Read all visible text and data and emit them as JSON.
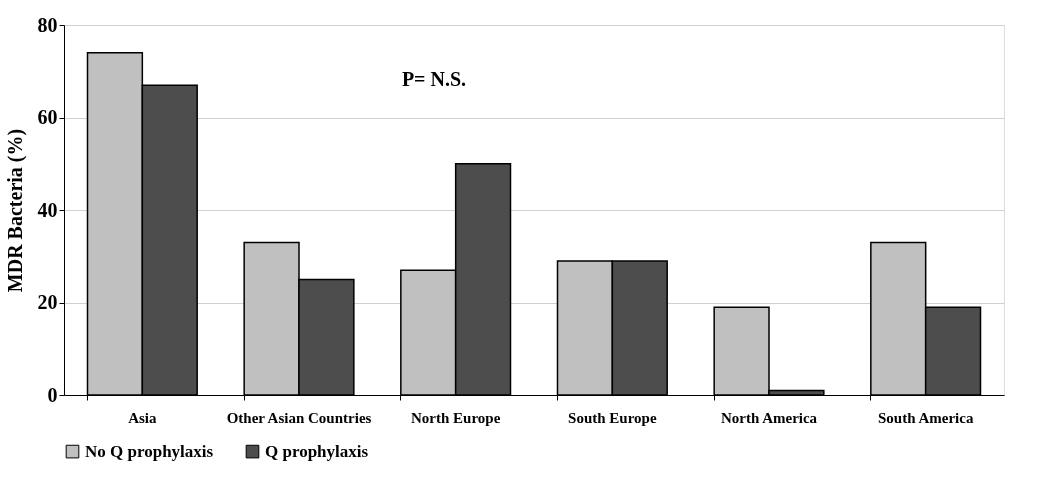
{
  "chart_data": {
    "type": "bar",
    "ylabel": "MDR Bacteria (%)",
    "categories": [
      "Asia",
      "Other Asian Countries",
      "North Europe",
      "South Europe",
      "North America",
      "South America"
    ],
    "series": [
      {
        "name": "No Q prophylaxis",
        "color": "#c0c0c0",
        "values": [
          74,
          33,
          27,
          29,
          19,
          33
        ]
      },
      {
        "name": "Q prophylaxis",
        "color": "#4d4d4d",
        "values": [
          67,
          25,
          50,
          29,
          1,
          19
        ]
      }
    ],
    "ylim": [
      0,
      80
    ],
    "yticks": [
      0,
      20,
      40,
      60,
      80
    ],
    "grid": "y",
    "legend": "bottom",
    "annotations": [
      "P= N.S."
    ]
  }
}
